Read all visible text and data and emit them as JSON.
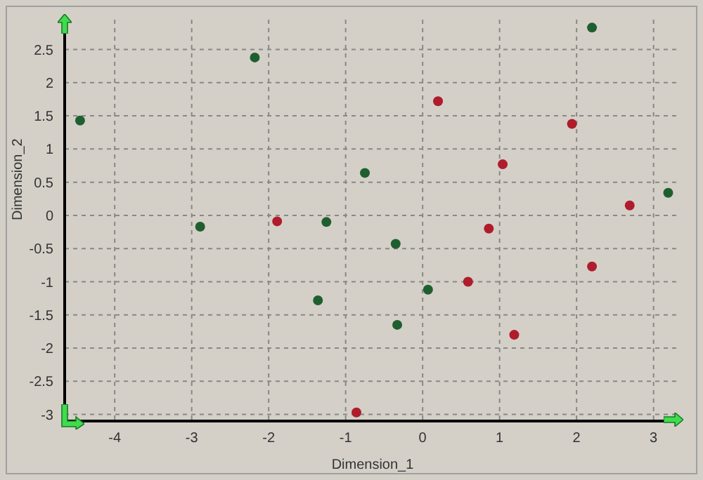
{
  "chart_data": {
    "type": "scatter",
    "xlabel": "Dimension_1",
    "ylabel": "Dimension_2",
    "xlim": [
      -4.65,
      3.35
    ],
    "ylim": [
      -3.1,
      2.95
    ],
    "xticks": [
      -4,
      -3,
      -2,
      -1,
      0,
      1,
      2,
      3
    ],
    "yticks": [
      -3,
      -2.5,
      -2,
      -1.5,
      -1,
      -0.5,
      0,
      0.5,
      1,
      1.5,
      2,
      2.5
    ],
    "grid": true,
    "marker": "circle",
    "series": [
      {
        "color": "#1f5f2f",
        "x": [
          -4.45,
          -2.18,
          -2.89,
          -1.25,
          -0.75,
          -0.35,
          -1.36,
          -0.33,
          0.07,
          2.2,
          3.19
        ],
        "values": [
          1.43,
          2.38,
          -0.17,
          -0.1,
          0.64,
          -0.43,
          -1.28,
          -1.65,
          -1.12,
          2.83,
          0.34
        ]
      },
      {
        "color": "#b01c2c",
        "x": [
          -1.89,
          0.2,
          1.04,
          1.94,
          0.86,
          2.69,
          2.2,
          0.59,
          1.19,
          -0.86
        ],
        "values": [
          -0.09,
          1.72,
          0.77,
          1.38,
          -0.2,
          0.15,
          -0.77,
          -1.0,
          -1.8,
          -2.97
        ]
      }
    ]
  }
}
